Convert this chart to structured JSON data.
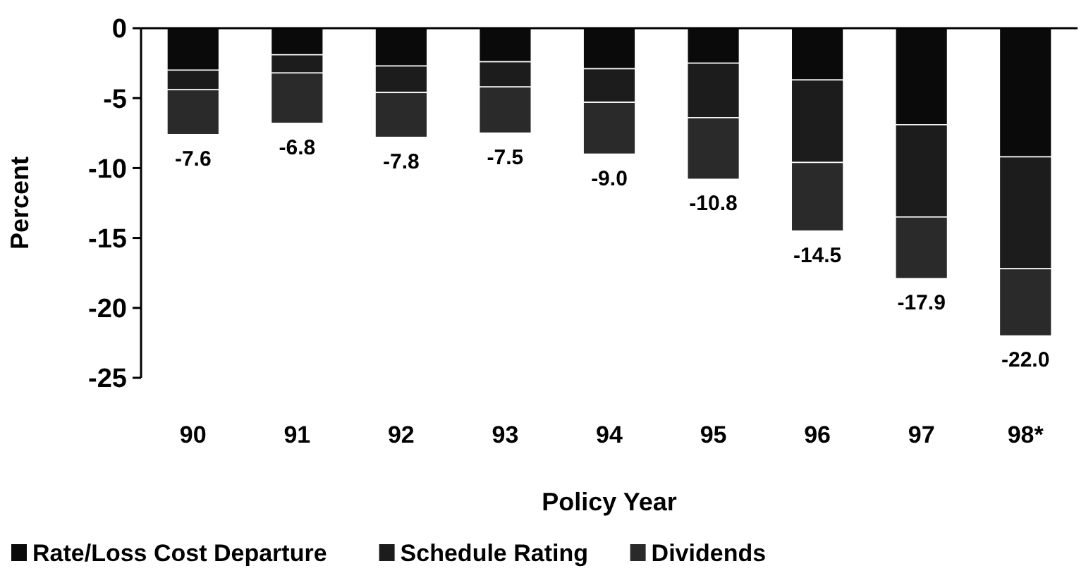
{
  "chart_data": {
    "type": "bar",
    "stacked": true,
    "xlabel": "Policy Year",
    "ylabel": "Percent",
    "categories": [
      "90",
      "91",
      "92",
      "93",
      "94",
      "95",
      "96",
      "97",
      "98*"
    ],
    "series": [
      {
        "name": "Rate/Loss Cost Departure",
        "color": "#0a0a0a",
        "values": [
          -3.0,
          -1.9,
          -2.7,
          -2.4,
          -2.9,
          -2.5,
          -3.7,
          -6.9,
          -9.2
        ]
      },
      {
        "name": "Schedule Rating",
        "color": "#1c1c1c",
        "values": [
          -1.4,
          -1.3,
          -1.9,
          -1.8,
          -2.4,
          -3.9,
          -5.9,
          -6.6,
          -8.0
        ]
      },
      {
        "name": "Dividends",
        "color": "#2a2a2a",
        "values": [
          -3.2,
          -3.6,
          -3.2,
          -3.3,
          -3.7,
          -4.4,
          -4.9,
          -4.4,
          -4.8
        ]
      }
    ],
    "totals": [
      "-7.6",
      "-6.8",
      "-7.8",
      "-7.5",
      "-9.0",
      "-10.8",
      "-14.5",
      "-17.9",
      "-22.0"
    ],
    "ylim": [
      -25,
      0
    ],
    "yticks": [
      0,
      -5,
      -10,
      -15,
      -20,
      -25
    ],
    "grid": false,
    "legend": "bottom"
  }
}
